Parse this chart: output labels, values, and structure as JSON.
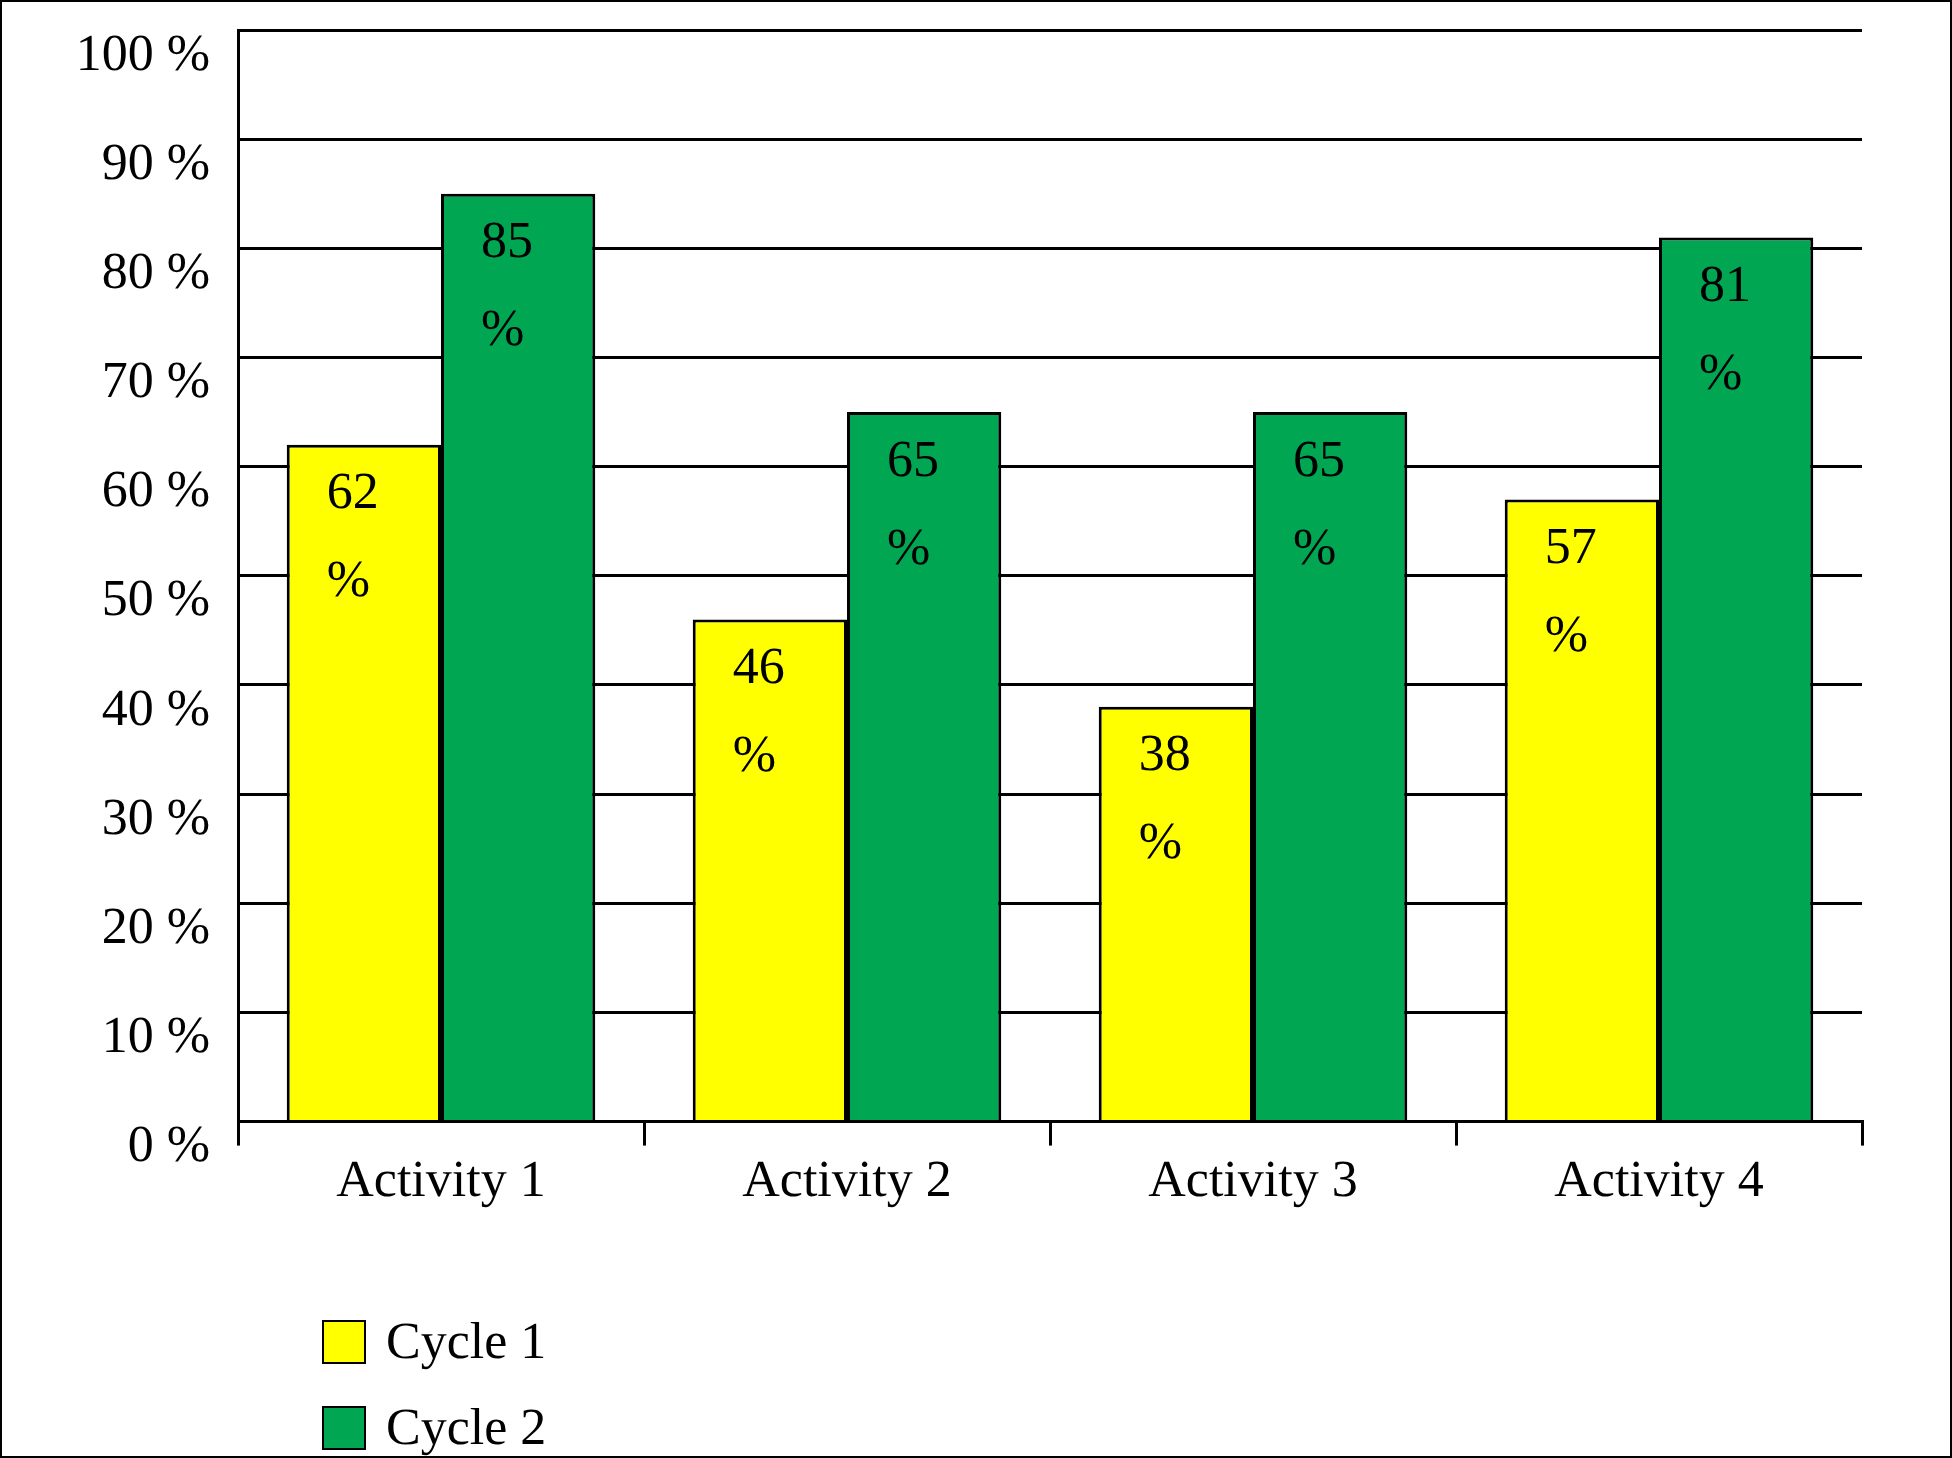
{
  "chart_data": {
    "type": "bar",
    "categories": [
      "Activity 1",
      "Activity 2",
      "Activity 3",
      "Activity 4"
    ],
    "series": [
      {
        "name": "Cycle 1",
        "color": "#ffff00",
        "values": [
          62,
          46,
          38,
          57
        ],
        "value_labels": [
          "62 %",
          "46 %",
          "38 %",
          "57 %"
        ]
      },
      {
        "name": "Cycle 2",
        "color": "#00a651",
        "values": [
          85,
          65,
          65,
          81
        ],
        "value_labels": [
          "85 %",
          "65 %",
          "65 %",
          "81 %"
        ]
      }
    ],
    "ylim": [
      0,
      100
    ],
    "yticks": [
      {
        "value": 0,
        "label": "0 %"
      },
      {
        "value": 10,
        "label": "10 %"
      },
      {
        "value": 20,
        "label": "20 %"
      },
      {
        "value": 30,
        "label": "30 %"
      },
      {
        "value": 40,
        "label": "40 %"
      },
      {
        "value": 50,
        "label": "50 %"
      },
      {
        "value": 60,
        "label": "60 %"
      },
      {
        "value": 70,
        "label": "70 %"
      },
      {
        "value": 80,
        "label": "80 %"
      },
      {
        "value": 90,
        "label": "90 %"
      },
      {
        "value": 100,
        "label": "100 %"
      }
    ],
    "grid": "y",
    "legend": "bottom left"
  }
}
